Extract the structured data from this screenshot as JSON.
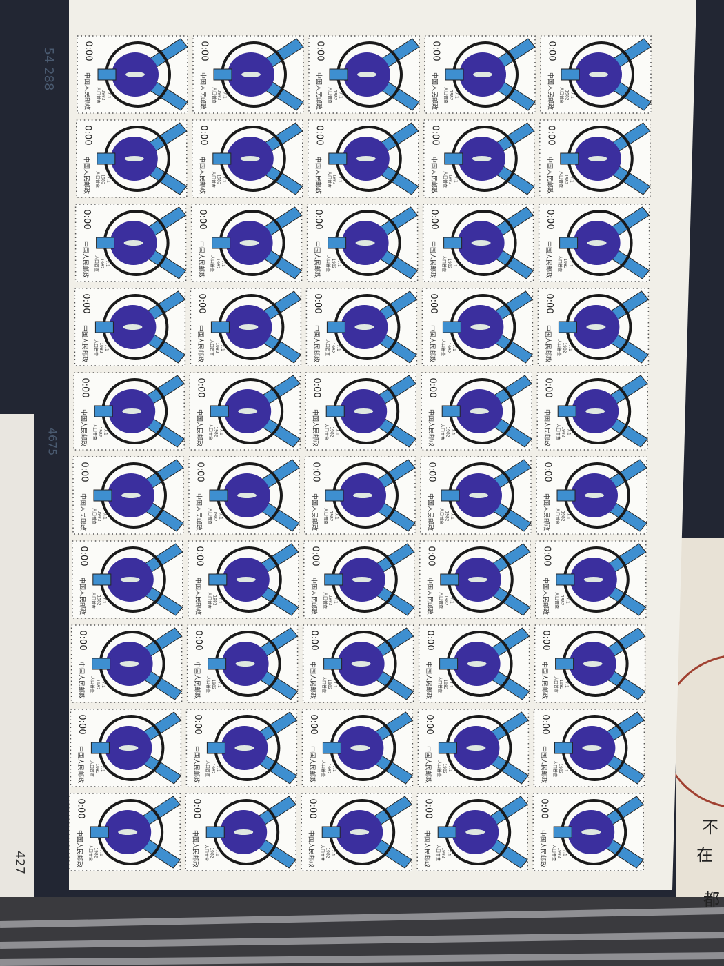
{
  "sheet": {
    "margin_numbers": [
      "54 288",
      "4675",
      "427"
    ]
  },
  "stamp": {
    "country": "中国人民邮政",
    "value": "0:00",
    "caption": "人口普查",
    "year": "1982",
    "date": "7.1"
  },
  "background_text": [
    "不",
    "在",
    "都"
  ]
}
